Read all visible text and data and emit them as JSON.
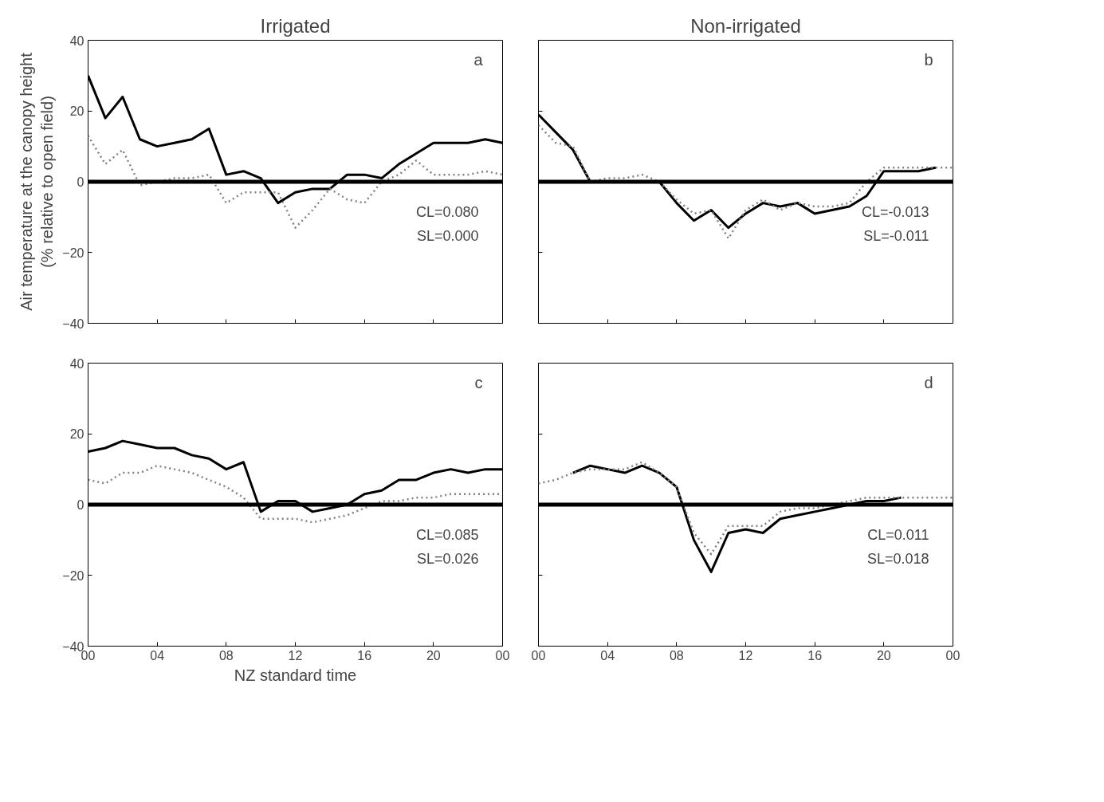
{
  "chart_data": [
    {
      "type": "line",
      "title": "Irrigated",
      "ylabel": "Air temperature at the canopy height\n(% relative to open field)",
      "x": [
        0,
        1,
        2,
        3,
        4,
        5,
        6,
        7,
        8,
        9,
        10,
        11,
        12,
        13,
        14,
        15,
        16,
        17,
        18,
        19,
        20,
        21,
        22,
        23,
        24
      ],
      "series": [
        {
          "color": "#000000",
          "line_style": "solid",
          "values": [
            30,
            18,
            24,
            12,
            10,
            11,
            12,
            15,
            2,
            3,
            1,
            -6,
            -3,
            -2,
            -2,
            2,
            2,
            1,
            5,
            8,
            11,
            11,
            11,
            12,
            11
          ]
        },
        {
          "color": "#808080",
          "line_style": "dotted",
          "values": [
            13,
            5,
            9,
            -1,
            0,
            1,
            1,
            2,
            -6,
            -3,
            -3,
            -3,
            -13,
            -8,
            -2,
            -5,
            -6,
            0,
            2,
            6,
            2,
            2,
            2,
            3,
            2
          ]
        }
      ],
      "ref_lines": [
        {
          "axis": "y",
          "value": 0,
          "color": "#000000"
        }
      ],
      "annotations": [
        "a",
        "CL=0.080",
        "SL=0.000"
      ],
      "xlim": [
        0,
        24
      ],
      "ylim": [
        -40,
        40
      ],
      "xticks": [
        0,
        4,
        8,
        12,
        16,
        20,
        24
      ],
      "yticks": [
        -40,
        -20,
        0,
        20,
        40
      ],
      "tick_labels": "y",
      "grid": false
    },
    {
      "type": "line",
      "title": "Non-irrigated",
      "x": [
        0,
        1,
        2,
        3,
        4,
        5,
        6,
        7,
        8,
        9,
        10,
        11,
        12,
        13,
        14,
        15,
        16,
        17,
        18,
        19,
        20,
        21,
        22,
        23,
        24
      ],
      "series": [
        {
          "color": "#000000",
          "line_style": "solid",
          "values": [
            19,
            14,
            9,
            0,
            0,
            0,
            0,
            0,
            -6,
            -11,
            -8,
            -13,
            -9,
            -6,
            -7,
            -6,
            -9,
            -8,
            -7,
            -4,
            3,
            3,
            3,
            4,
            null
          ]
        },
        {
          "color": "#808080",
          "line_style": "dotted",
          "values": [
            16,
            11,
            10,
            0,
            1,
            1,
            2,
            0,
            -5,
            -9,
            -8,
            -16,
            -8,
            -5,
            -8,
            -6,
            -7,
            -7,
            -6,
            0,
            4,
            4,
            4,
            4,
            4
          ]
        }
      ],
      "ref_lines": [
        {
          "axis": "y",
          "value": 0,
          "color": "#000000"
        }
      ],
      "annotations": [
        "b",
        "CL=-0.013",
        "SL=-0.011"
      ],
      "xlim": [
        0,
        24
      ],
      "ylim": [
        -40,
        40
      ],
      "xticks": [
        0,
        4,
        8,
        12,
        16,
        20,
        24
      ],
      "yticks": [
        -40,
        -20,
        0,
        20,
        40
      ],
      "tick_labels": false,
      "grid": false
    },
    {
      "type": "line",
      "xlabel": "NZ standard time",
      "x": [
        0,
        1,
        2,
        3,
        4,
        5,
        6,
        7,
        8,
        9,
        10,
        11,
        12,
        13,
        14,
        15,
        16,
        17,
        18,
        19,
        20,
        21,
        22,
        23,
        24
      ],
      "series": [
        {
          "color": "#000000",
          "line_style": "solid",
          "values": [
            15,
            16,
            18,
            17,
            16,
            16,
            14,
            13,
            10,
            12,
            -2,
            1,
            1,
            -2,
            -1,
            0,
            3,
            4,
            7,
            7,
            9,
            10,
            9,
            10,
            10
          ]
        },
        {
          "color": "#808080",
          "line_style": "dotted",
          "values": [
            7,
            6,
            9,
            9,
            11,
            10,
            9,
            7,
            5,
            2,
            -4,
            -4,
            -4,
            -5,
            -4,
            -3,
            -1,
            1,
            1,
            2,
            2,
            3,
            3,
            3,
            3
          ]
        }
      ],
      "ref_lines": [
        {
          "axis": "y",
          "value": 0,
          "color": "#000000"
        }
      ],
      "annotations": [
        "c",
        "CL=0.085",
        "SL=0.026"
      ],
      "xlim": [
        0,
        24
      ],
      "ylim": [
        -40,
        40
      ],
      "xticks": [
        {
          "value": 0,
          "label": "00"
        },
        {
          "value": 4,
          "label": "04"
        },
        {
          "value": 8,
          "label": "08"
        },
        12,
        16,
        20,
        {
          "value": 24,
          "label": "00"
        }
      ],
      "yticks": [
        -40,
        -20,
        0,
        20,
        40
      ],
      "grid": false
    },
    {
      "type": "line",
      "x": [
        0,
        1,
        2,
        3,
        4,
        5,
        6,
        7,
        8,
        9,
        10,
        11,
        12,
        13,
        14,
        15,
        16,
        17,
        18,
        19,
        20,
        21,
        22,
        23,
        24
      ],
      "series": [
        {
          "color": "#000000",
          "line_style": "solid",
          "values": [
            null,
            null,
            9,
            11,
            10,
            9,
            11,
            9,
            5,
            -10,
            -19,
            -8,
            -7,
            -8,
            -4,
            -3,
            -2,
            -1,
            0,
            1,
            1,
            2,
            null,
            null,
            null
          ]
        },
        {
          "color": "#808080",
          "line_style": "dotted",
          "values": [
            6,
            7,
            9,
            10,
            10,
            10,
            12,
            9,
            5,
            -8,
            -14,
            -6,
            -6,
            -6,
            -2,
            -1,
            -1,
            0,
            1,
            2,
            2,
            2,
            2,
            2,
            2
          ]
        }
      ],
      "ref_lines": [
        {
          "axis": "y",
          "value": 0,
          "color": "#000000"
        }
      ],
      "annotations": [
        "d",
        "CL=0.011",
        "SL=0.018"
      ],
      "xlim": [
        0,
        24
      ],
      "ylim": [
        -40,
        40
      ],
      "xticks": [
        {
          "value": 0,
          "label": "00"
        },
        {
          "value": 4,
          "label": "04"
        },
        {
          "value": 8,
          "label": "08"
        },
        12,
        16,
        20,
        {
          "value": 24,
          "label": "00"
        }
      ],
      "yticks": [
        -40,
        -20,
        0,
        20,
        40
      ],
      "tick_labels": "x",
      "grid": false
    }
  ]
}
